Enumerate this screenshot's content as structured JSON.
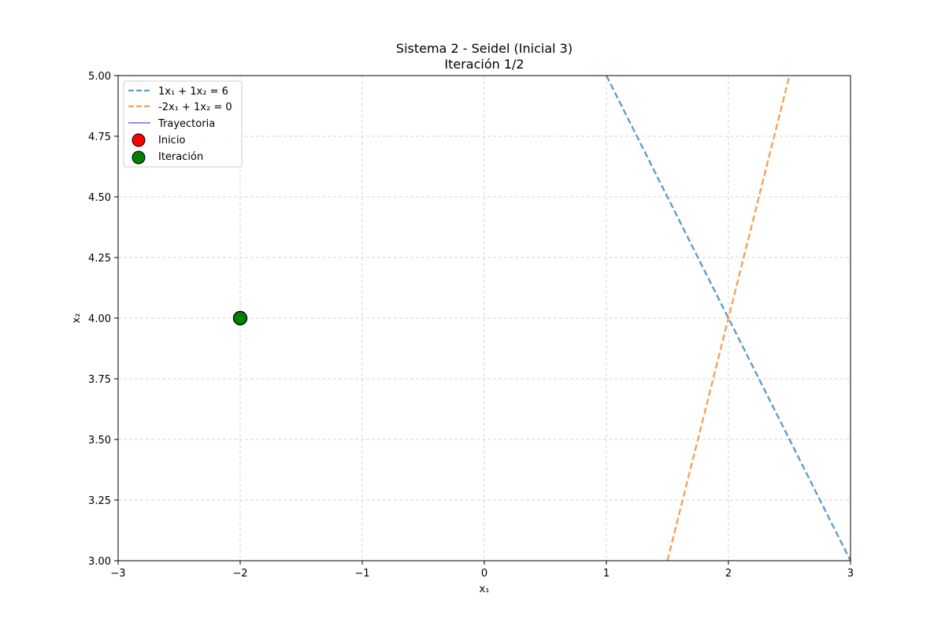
{
  "chart_data": {
    "type": "line",
    "title": [
      "Sistema 2 - Seidel (Inicial 3)",
      "Iteración 1/2"
    ],
    "xlabel": "x₁",
    "ylabel": "x₂",
    "xlim": [
      -3,
      3
    ],
    "ylim": [
      3.0,
      5.0
    ],
    "xticks": [
      -3,
      -2,
      -1,
      0,
      1,
      2,
      3
    ],
    "xtick_labels": [
      "−3",
      "−2",
      "−1",
      "0",
      "1",
      "2",
      "3"
    ],
    "yticks": [
      3.0,
      3.25,
      3.5,
      3.75,
      4.0,
      4.25,
      4.5,
      4.75,
      5.0
    ],
    "ytick_labels": [
      "3.00",
      "3.25",
      "3.50",
      "3.75",
      "4.00",
      "4.25",
      "4.50",
      "4.75",
      "5.00"
    ],
    "grid": true,
    "legend_position": "top-left",
    "series": [
      {
        "name": "1x₁ + 1x₂ = 6",
        "kind": "line",
        "style": "dashed",
        "color": "#5f9ec9",
        "x": [
          1.0,
          3.0
        ],
        "y": [
          5.0,
          3.0
        ]
      },
      {
        "name": "-2x₁ + 1x₂ = 0",
        "kind": "line",
        "style": "dashed",
        "color": "#f5a05a",
        "x": [
          1.5,
          2.5
        ],
        "y": [
          3.0,
          5.0
        ]
      },
      {
        "name": "Trayectoria",
        "kind": "line",
        "style": "solid",
        "color": "#6b6bf0",
        "x": [
          -2,
          -2
        ],
        "y": [
          4,
          4
        ]
      },
      {
        "name": "Inicio",
        "kind": "scatter",
        "color": "#ff0000",
        "x": [
          -2
        ],
        "y": [
          4
        ]
      },
      {
        "name": "Iteración",
        "kind": "scatter",
        "color": "#008000",
        "x": [
          -2
        ],
        "y": [
          4
        ]
      }
    ]
  }
}
